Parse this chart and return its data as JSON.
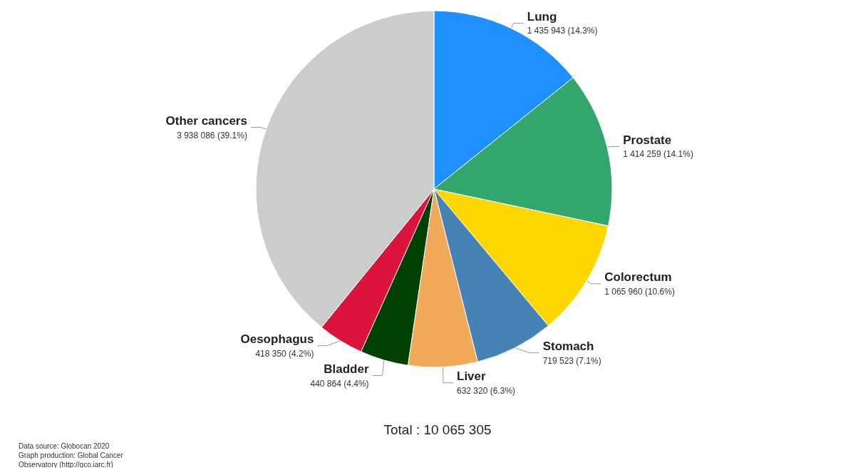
{
  "chart_data": {
    "type": "pie",
    "title": "Total : 10 065 305",
    "categories": [
      "Lung",
      "Prostate",
      "Colorectum",
      "Stomach",
      "Liver",
      "Bladder",
      "Oesophagus",
      "Other cancers"
    ],
    "values": [
      1435943,
      1414259,
      1065960,
      719523,
      632320,
      440864,
      418350,
      3938086
    ],
    "value_labels": [
      "1 435 943 (14.3%)",
      "1 414 259 (14.1%)",
      "1 065 960 (10.6%)",
      "719 523 (7.1%)",
      "632 320 (6.3%)",
      "440 864 (4.4%)",
      "418 350 (4.2%)",
      "3 938 086 (39.1%)"
    ],
    "colors": [
      "#1e90ff",
      "#33a66e",
      "#ffd700",
      "#4682b4",
      "#f0aa5a",
      "#004000",
      "#dc143c",
      "#cccccc"
    ],
    "legend": false,
    "annotations": [
      "Data source: Globocan 2020",
      "Graph production: Global Cancer",
      "Observatory (http://gco.iarc.fr)"
    ]
  }
}
